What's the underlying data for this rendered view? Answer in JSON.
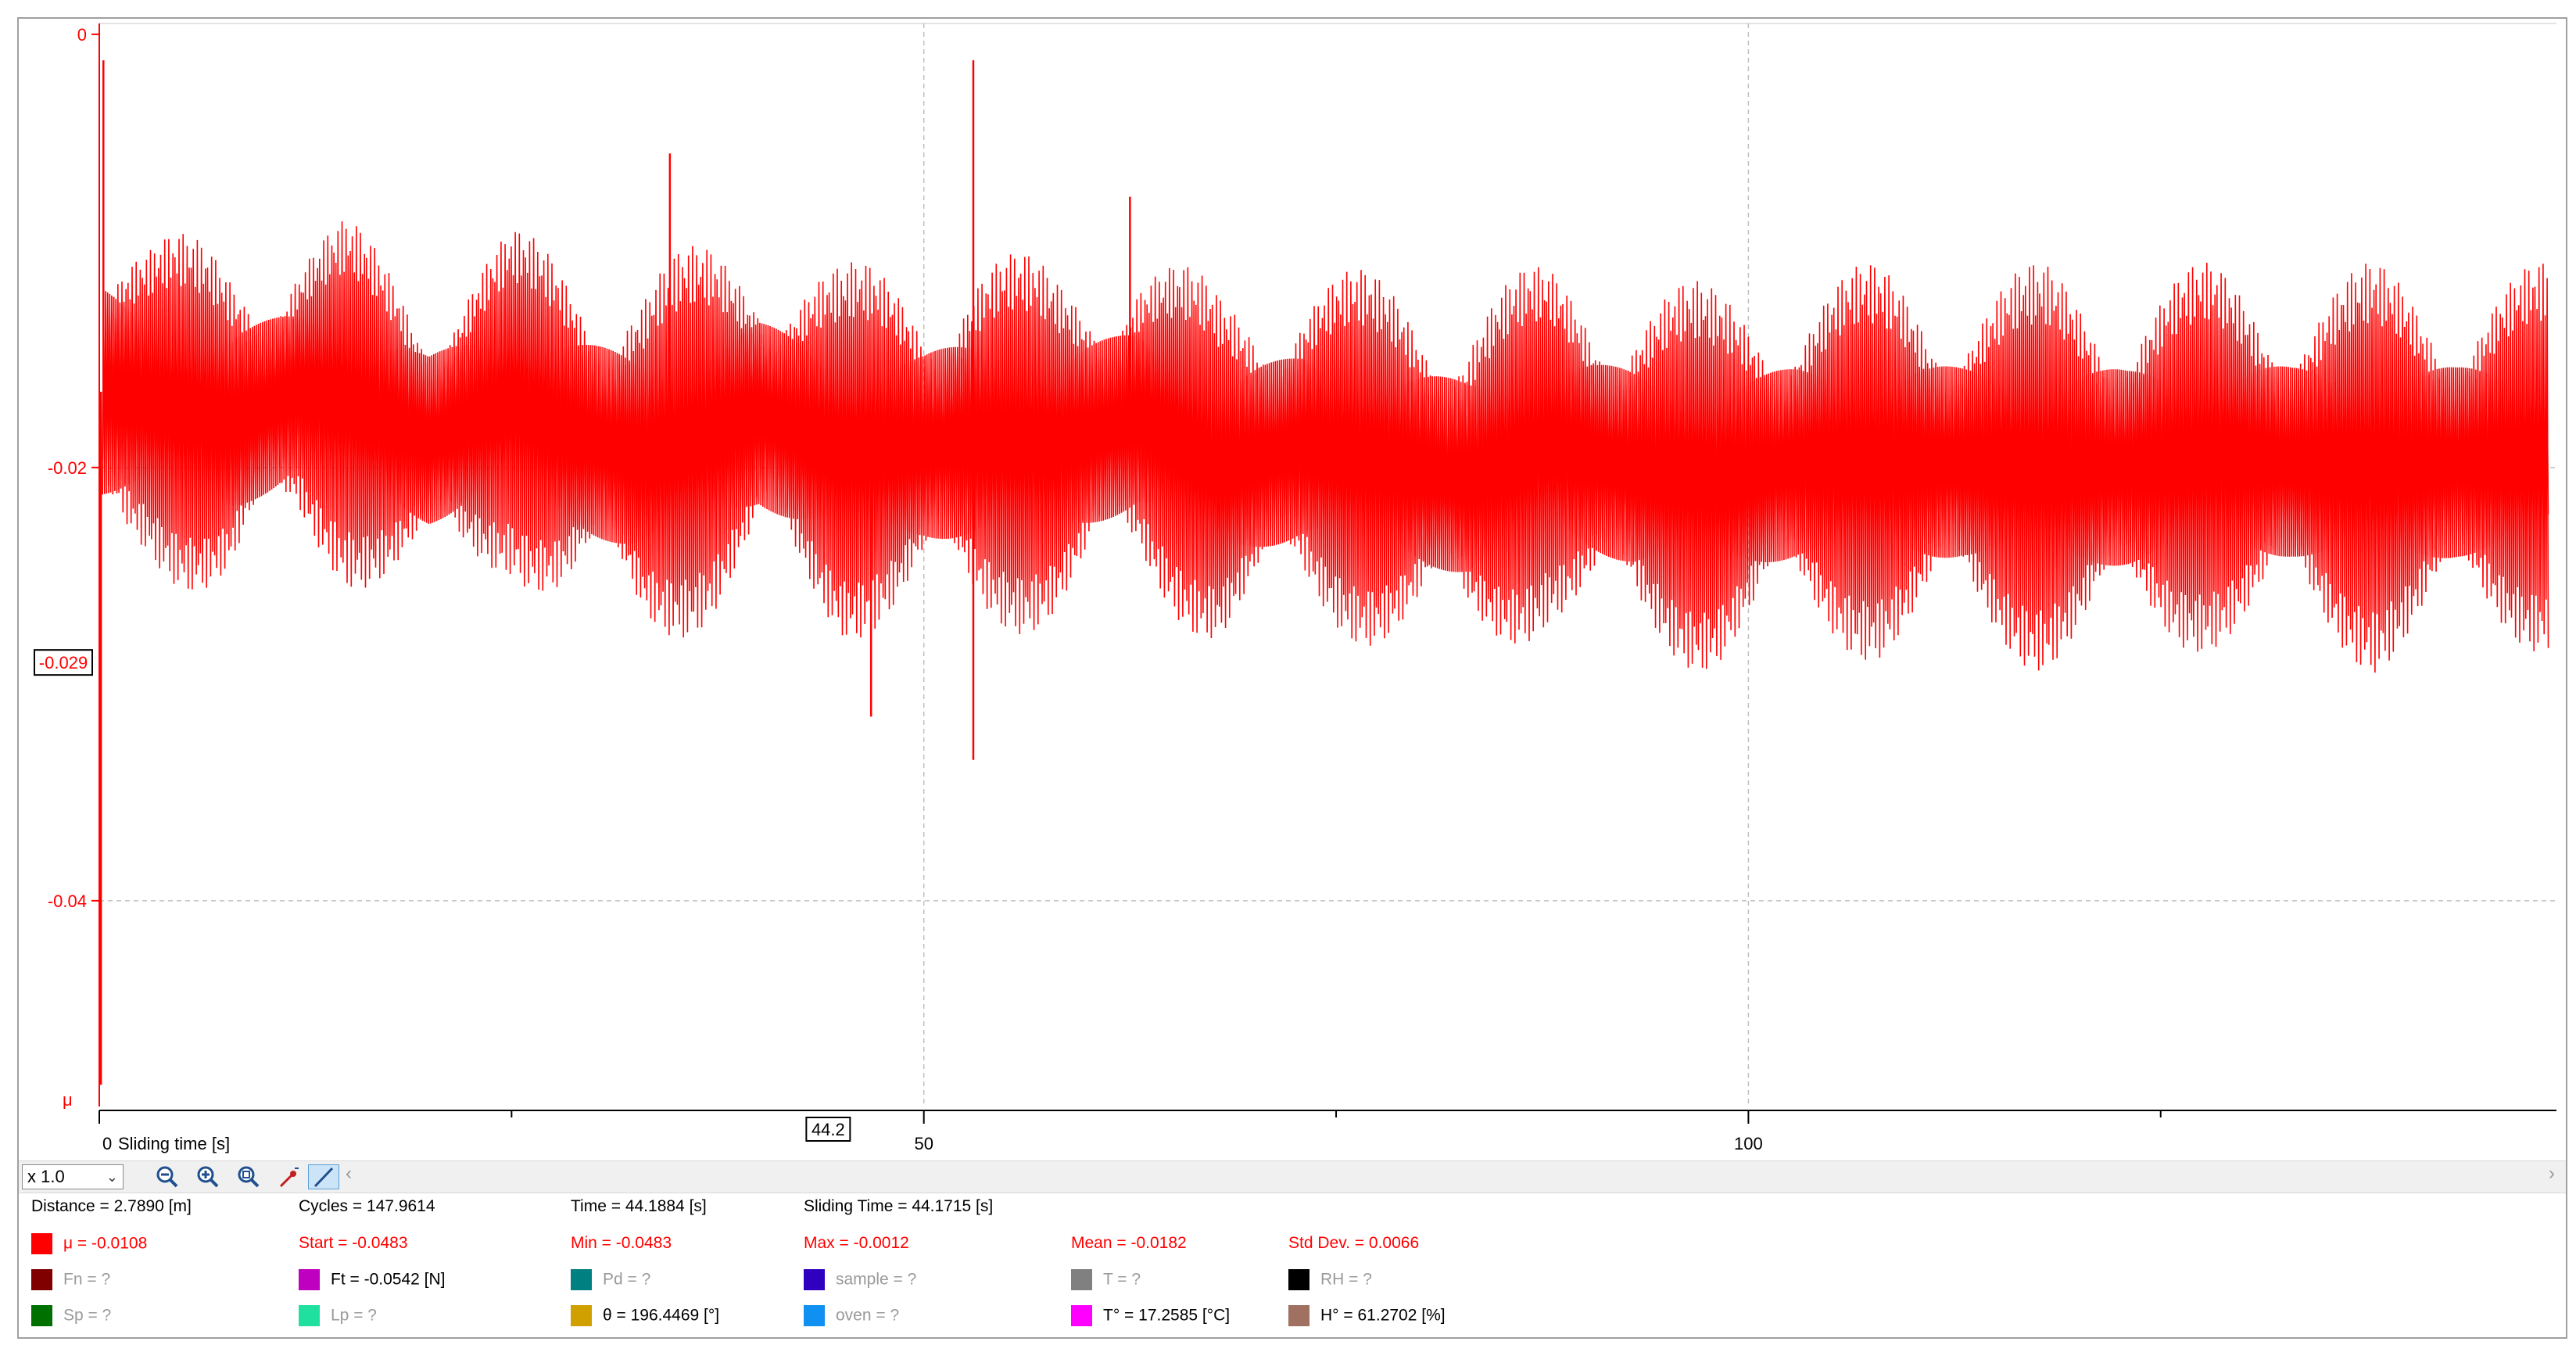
{
  "chart_data": {
    "type": "line",
    "title": "",
    "xlabel": "Sliding time [s]",
    "ylabel": "μ",
    "xlim": [
      0,
      149
    ],
    "ylim": [
      -0.0495,
      0.0005
    ],
    "x_ticks": [
      0,
      50,
      100
    ],
    "x_tick_labels": [
      "0",
      "50",
      "100"
    ],
    "y_ticks": [
      0,
      -0.02,
      -0.04
    ],
    "y_tick_labels": [
      "0",
      "-0.02",
      "-0.04"
    ],
    "grid": true,
    "cursor": {
      "x": 44.2,
      "x_label": "44.2",
      "y": -0.029,
      "y_label": "-0.029"
    },
    "series": [
      {
        "name": "μ",
        "color": "#ff0000",
        "envelope": {
          "x": [
            0.2,
            3,
            8,
            12,
            15,
            20,
            25,
            28,
            33,
            37,
            40,
            45,
            50,
            53,
            58,
            63,
            68,
            73,
            78,
            83,
            88,
            93,
            98,
            103,
            108,
            113,
            118,
            123,
            128,
            133,
            138,
            143,
            148.5
          ],
          "upper": [
            -0.007,
            -0.009,
            -0.0095,
            -0.009,
            -0.0085,
            -0.011,
            -0.009,
            -0.0095,
            -0.0105,
            -0.0095,
            -0.009,
            -0.0105,
            -0.0105,
            -0.0095,
            -0.0105,
            -0.0095,
            -0.0115,
            -0.0105,
            -0.011,
            -0.0115,
            -0.0105,
            -0.011,
            -0.0115,
            -0.011,
            -0.0105,
            -0.011,
            -0.0105,
            -0.011,
            -0.0105,
            -0.011,
            -0.0105,
            -0.011,
            -0.0105
          ],
          "lower": [
            -0.026,
            -0.025,
            -0.0265,
            -0.024,
            -0.0255,
            -0.0265,
            -0.025,
            -0.027,
            -0.0285,
            -0.0275,
            -0.026,
            -0.028,
            -0.0275,
            -0.028,
            -0.0275,
            -0.026,
            -0.0285,
            -0.0275,
            -0.0285,
            -0.0295,
            -0.0275,
            -0.029,
            -0.0295,
            -0.0285,
            -0.029,
            -0.0285,
            -0.0295,
            -0.029,
            -0.0285,
            -0.0285,
            -0.0295,
            -0.0285,
            -0.0285
          ]
        },
        "spikes": [
          {
            "x": 0.1,
            "y": -0.0485
          },
          {
            "x": 0.25,
            "y": -0.0012
          },
          {
            "x": 34.6,
            "y": -0.0055
          },
          {
            "x": 46.8,
            "y": -0.0315
          },
          {
            "x": 53.0,
            "y": -0.0012
          },
          {
            "x": 53.0,
            "y": -0.0335
          },
          {
            "x": 62.5,
            "y": -0.0075
          }
        ]
      }
    ]
  },
  "toolbar": {
    "zoom_value": "x 1.0",
    "buttons": [
      "zoom-out-icon",
      "zoom-in-icon",
      "zoom-fit-icon",
      "pick-point-icon",
      "line-tool-icon"
    ]
  },
  "info": {
    "distance": "Distance = 2.7890 [m]",
    "cycles": "Cycles = 147.9614",
    "time": "Time = 44.1884 [s]",
    "sliding_time": "Sliding Time = 44.1715 [s]",
    "mu": "μ = -0.0108",
    "start": "Start = -0.0483",
    "min": "Min = -0.0483",
    "max": "Max = -0.0012",
    "mean": "Mean = -0.0182",
    "std": "Std Dev. = 0.0066",
    "channels": {
      "fn": "Fn = ?",
      "ft": "Ft = -0.0542 [N]",
      "pd": "Pd = ?",
      "sample": "sample = ?",
      "t": "T = ?",
      "rh": "RH = ?",
      "sp": "Sp = ?",
      "lp": "Lp = ?",
      "theta": "θ = 196.4469 [°]",
      "oven": "oven = ?",
      "tdeg": "T° = 17.2585 [°C]",
      "hdeg": "H° = 61.2702 [%]"
    },
    "colors": {
      "mu": "#ff0000",
      "fn": "#800000",
      "ft": "#c000c0",
      "pd": "#008080",
      "sample": "#3000c0",
      "t": "#808080",
      "rh": "#000000",
      "sp": "#007000",
      "lp": "#20e0a0",
      "theta": "#d0a000",
      "oven": "#1090f0",
      "tdeg": "#ff00ff",
      "hdeg": "#a07060"
    }
  }
}
